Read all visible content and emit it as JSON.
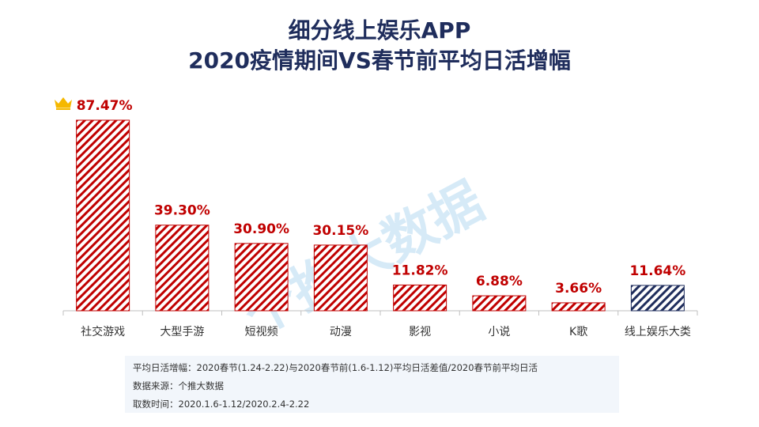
{
  "title": {
    "line1": "细分线上娱乐APP",
    "line2": "2020疫情期间VS春节前平均日活增幅"
  },
  "chart_data": {
    "type": "bar",
    "categories": [
      "社交游戏",
      "大型手游",
      "短视频",
      "动漫",
      "影视",
      "小说",
      "K歌",
      "线上娱乐大类"
    ],
    "values": [
      87.47,
      39.3,
      30.9,
      30.15,
      11.82,
      6.88,
      3.66,
      11.64
    ],
    "value_labels": [
      "87.47%",
      "39.30%",
      "30.90%",
      "30.15%",
      "11.82%",
      "6.88%",
      "3.66%",
      "11.64%"
    ],
    "ylim": [
      0,
      87.47
    ],
    "grid": false,
    "bar_colors": [
      "#c00000",
      "#c00000",
      "#c00000",
      "#c00000",
      "#c00000",
      "#c00000",
      "#c00000",
      "#1f2d5c"
    ],
    "label_color": "#c00000",
    "top_marker_icon": "crown-icon"
  },
  "notes": {
    "line1": "平均日活增幅：2020春节(1.24-2.22)与2020春节前(1.6-1.12)平均日活差值/2020春节前平均日活",
    "line2": "数据来源：个推大数据",
    "line3": "取数时间：2020.1.6-1.12/2020.2.4-2.22"
  },
  "watermark": "个推大数据"
}
